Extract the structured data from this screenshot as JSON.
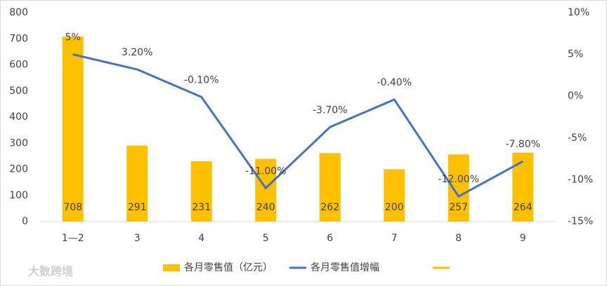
{
  "chart_data": {
    "type": "bar-line",
    "categories": [
      "1—2",
      "3",
      "4",
      "5",
      "6",
      "7",
      "8",
      "9"
    ],
    "series": [
      {
        "name": "各月零售值（亿元）",
        "type": "bar",
        "color": "#FFC000",
        "values": [
          708,
          291,
          231,
          240,
          262,
          200,
          257,
          264
        ]
      },
      {
        "name": "各月零售值增幅",
        "type": "line",
        "axis": "y2",
        "color": "#4472C4",
        "values": [
          5,
          3.2,
          -0.1,
          -11,
          -3.7,
          -0.4,
          -12,
          -7.8
        ],
        "value_labels": [
          "5%",
          "3.20%",
          "-0.10%",
          "-11.00%",
          "-3.70%",
          "-0.40%",
          "-12.00%",
          "-7.80%"
        ]
      }
    ],
    "ylim": [
      0,
      800
    ],
    "yticks": [
      0,
      100,
      200,
      300,
      400,
      500,
      600,
      700,
      800
    ],
    "y2lim": [
      -15,
      10
    ],
    "y2ticks": [
      {
        "value": -15,
        "label": "-15%"
      },
      {
        "value": -10,
        "label": "-10%"
      },
      {
        "value": -5,
        "label": "-5%"
      },
      {
        "value": 0,
        "label": "0%"
      },
      {
        "value": 5,
        "label": "5%"
      },
      {
        "value": 10,
        "label": "10%"
      }
    ],
    "grid": false,
    "legend": "bottom"
  },
  "watermark": "大数跨境"
}
